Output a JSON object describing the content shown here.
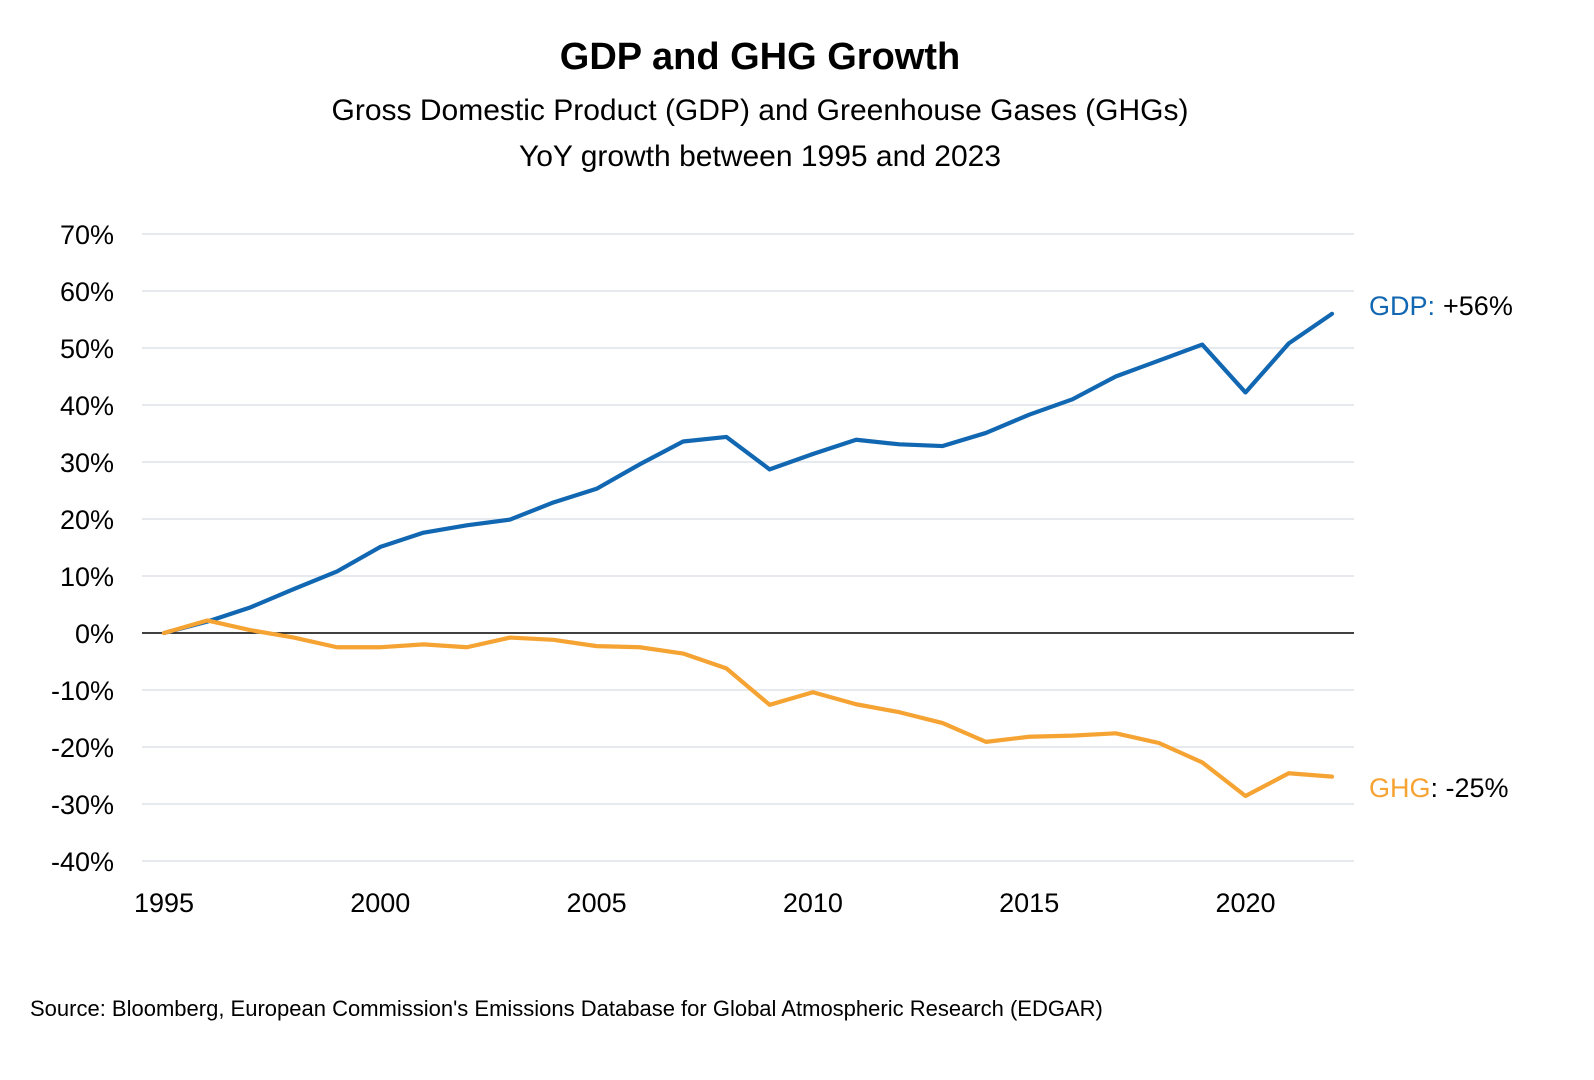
{
  "title": "GDP and GHG Growth",
  "subtitle_line1": "Gross Domestic Product (GDP) and Greenhouse Gases (GHGs)",
  "subtitle_line2": "YoY growth between 1995 and 2023",
  "source": "Source: Bloomberg, European Commission's Emissions Database for Global Atmospheric Research (EDGAR)",
  "colors": {
    "gdp": "#1167b1",
    "ghg": "#f5a333",
    "grid": "#dde3ea",
    "zero": "#000000"
  },
  "chart_data": {
    "type": "line",
    "title": "GDP and GHG Growth",
    "subtitle": "Gross Domestic Product (GDP) and Greenhouse Gases (GHGs) YoY growth between 1995 and 2023",
    "xlabel": "",
    "ylabel": "",
    "xlim": [
      1995,
      2022
    ],
    "ylim": [
      -40,
      70
    ],
    "y_ticks": [
      70,
      60,
      50,
      40,
      30,
      20,
      10,
      0,
      -10,
      -20,
      -30,
      -40
    ],
    "y_tick_labels": [
      "70%",
      "60%",
      "50%",
      "40%",
      "30%",
      "20%",
      "10%",
      "0%",
      "-10%",
      "-20%",
      "-30%",
      "-40%"
    ],
    "x_ticks": [
      1995,
      2000,
      2005,
      2010,
      2015,
      2020
    ],
    "x_tick_labels": [
      "1995",
      "2000",
      "2005",
      "2010",
      "2015",
      "2020"
    ],
    "grid": true,
    "legend": "none",
    "x": [
      1995,
      1996,
      1997,
      1998,
      1999,
      2000,
      2001,
      2002,
      2003,
      2004,
      2005,
      2006,
      2007,
      2008,
      2009,
      2010,
      2011,
      2012,
      2013,
      2014,
      2015,
      2016,
      2017,
      2018,
      2019,
      2020,
      2021,
      2022
    ],
    "series": [
      {
        "name": "GDP",
        "end_label": "GDP:",
        "end_value": "+56%",
        "values": [
          0,
          2.0,
          4.5,
          7.7,
          10.8,
          15.1,
          17.6,
          18.9,
          19.9,
          22.9,
          25.3,
          29.6,
          33.6,
          34.4,
          28.7,
          31.4,
          33.9,
          33.1,
          32.8,
          35.1,
          38.3,
          41.0,
          45.0,
          47.8,
          50.6,
          42.2,
          50.8,
          56.0
        ]
      },
      {
        "name": "GHG",
        "end_label": "GHG",
        "end_value": ": -25%",
        "values": [
          0,
          2.2,
          0.5,
          -0.8,
          -2.5,
          -2.5,
          -2.0,
          -2.5,
          -0.8,
          -1.2,
          -2.3,
          -2.5,
          -3.6,
          -6.2,
          -12.6,
          -10.4,
          -12.5,
          -13.9,
          -15.8,
          -19.1,
          -18.2,
          -18.0,
          -17.6,
          -19.3,
          -22.7,
          -28.6,
          -24.6,
          -25.2
        ]
      }
    ]
  }
}
